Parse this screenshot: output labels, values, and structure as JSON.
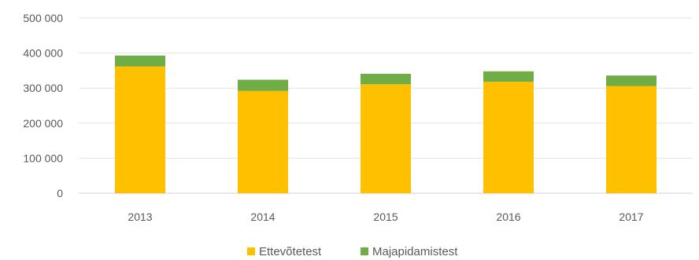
{
  "chart_data": {
    "type": "bar",
    "stacked": true,
    "categories": [
      "2013",
      "2014",
      "2015",
      "2016",
      "2017"
    ],
    "series": [
      {
        "name": "Ettevõtetest",
        "color": "#FFC000",
        "values": [
          362000,
          292000,
          311000,
          318000,
          306000
        ]
      },
      {
        "name": "Majapidamistest",
        "color": "#70AD47",
        "values": [
          31000,
          32000,
          30000,
          30000,
          30000
        ]
      }
    ],
    "y_ticks": [
      "0",
      "100 000",
      "200 000",
      "300 000",
      "400 000",
      "500 000"
    ],
    "ylim": [
      0,
      500000
    ],
    "grid": true,
    "legend": "bottom-center",
    "title": "",
    "xlabel": "",
    "ylabel": ""
  }
}
